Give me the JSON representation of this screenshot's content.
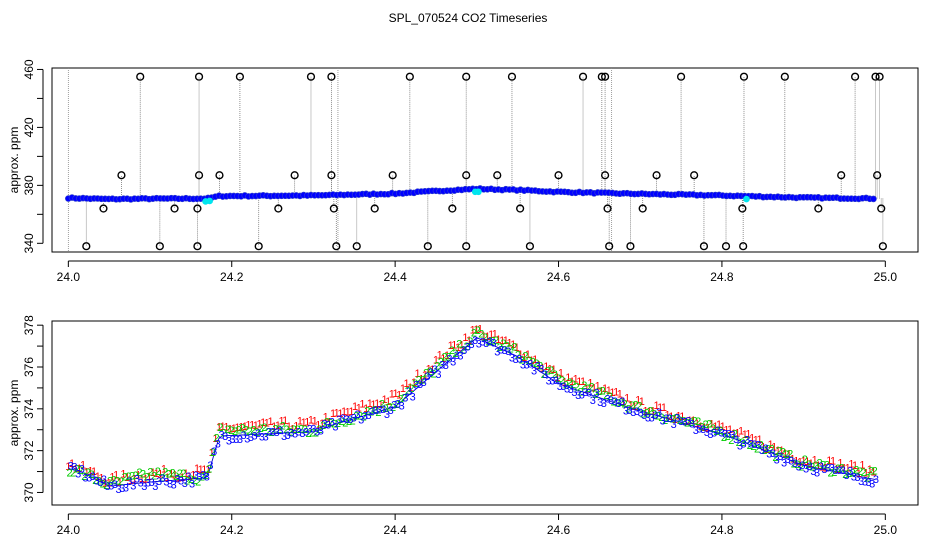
{
  "title": "SPL_070524  CO2 Timeseries",
  "colors": {
    "sample": "#0000ff",
    "ring": "#000000",
    "ref": "#00e5ee",
    "s1": "#ff0000",
    "s2": "#00cc00",
    "s3": "#0000ff"
  },
  "chart_data": [
    {
      "type": "scatter",
      "ylabel": "approx. ppm",
      "xlim": [
        23.98,
        25.04
      ],
      "ylim": [
        334,
        461
      ],
      "xticks": [
        "24.0",
        "24.2",
        "24.4",
        "24.6",
        "24.8",
        "25.0"
      ],
      "yticks": [
        "340",
        "380",
        "420",
        "460"
      ],
      "baseline": [
        [
          24.0,
          371.3
        ],
        [
          24.05,
          370.5
        ],
        [
          24.1,
          370.8
        ],
        [
          24.17,
          370.9
        ],
        [
          24.185,
          372.6
        ],
        [
          24.3,
          373.0
        ],
        [
          24.33,
          373.4
        ],
        [
          24.4,
          374.3
        ],
        [
          24.46,
          376.4
        ],
        [
          24.5,
          377.6
        ],
        [
          24.55,
          376.8
        ],
        [
          24.6,
          375.5
        ],
        [
          24.66,
          374.6
        ],
        [
          24.7,
          374.1
        ],
        [
          24.8,
          373.0
        ],
        [
          24.9,
          371.5
        ],
        [
          24.99,
          370.9
        ]
      ],
      "outliers_high": [
        24.088,
        24.16,
        24.21,
        24.297,
        24.322,
        24.418,
        24.487,
        24.543,
        24.63,
        24.653,
        24.657,
        24.75,
        24.827,
        24.877,
        24.963,
        24.988,
        24.993
      ],
      "outliers_mid": [
        24.065,
        24.16,
        24.185,
        24.277,
        24.322,
        24.397,
        24.487,
        24.525,
        24.6,
        24.657,
        24.72,
        24.766,
        24.946,
        24.99
      ],
      "outliers_low": [
        24.043,
        24.13,
        24.158,
        24.257,
        24.325,
        24.375,
        24.47,
        24.553,
        24.66,
        24.703,
        24.825,
        24.918,
        24.995
      ],
      "outliers_bottom": [
        24.022,
        24.112,
        24.158,
        24.233,
        24.328,
        24.353,
        24.44,
        24.487,
        24.565,
        24.662,
        24.688,
        24.778,
        24.826,
        24.805,
        24.997
      ],
      "ref_points": [
        24.168,
        24.173,
        24.498,
        24.502,
        24.83
      ]
    },
    {
      "type": "scatter",
      "ylabel": "approx. ppm",
      "xlim": [
        23.98,
        25.04
      ],
      "ylim": [
        369.4,
        378.2
      ],
      "xticks": [
        "24.0",
        "24.2",
        "24.4",
        "24.6",
        "24.8",
        "25.0"
      ],
      "yticks": [
        "370",
        "372",
        "374",
        "376",
        "378"
      ],
      "series": [
        {
          "name": "1",
          "values": [
            [
              24.0,
              371.4
            ],
            [
              24.05,
              370.6
            ],
            [
              24.1,
              370.9
            ],
            [
              24.17,
              371.0
            ],
            [
              24.185,
              373.1
            ],
            [
              24.3,
              373.3
            ],
            [
              24.33,
              373.7
            ],
            [
              24.4,
              374.6
            ],
            [
              24.46,
              376.6
            ],
            [
              24.5,
              377.8
            ],
            [
              24.55,
              376.9
            ],
            [
              24.6,
              375.6
            ],
            [
              24.66,
              374.8
            ],
            [
              24.7,
              374.2
            ],
            [
              24.8,
              373.1
            ],
            [
              24.9,
              371.6
            ],
            [
              24.99,
              371.0
            ]
          ]
        },
        {
          "name": "2",
          "values": [
            [
              24.0,
              371.2
            ],
            [
              24.05,
              370.4
            ],
            [
              24.1,
              370.9
            ],
            [
              24.17,
              370.7
            ],
            [
              24.185,
              373.0
            ],
            [
              24.3,
              373.0
            ],
            [
              24.33,
              373.4
            ],
            [
              24.4,
              374.3
            ],
            [
              24.46,
              376.3
            ],
            [
              24.5,
              377.6
            ],
            [
              24.55,
              376.7
            ],
            [
              24.6,
              375.4
            ],
            [
              24.66,
              374.6
            ],
            [
              24.7,
              374.0
            ],
            [
              24.8,
              372.9
            ],
            [
              24.9,
              371.4
            ],
            [
              24.99,
              370.8
            ]
          ]
        },
        {
          "name": "3",
          "values": [
            [
              24.0,
              371.3
            ],
            [
              24.05,
              370.3
            ],
            [
              24.1,
              370.5
            ],
            [
              24.17,
              370.7
            ],
            [
              24.185,
              372.7
            ],
            [
              24.3,
              372.9
            ],
            [
              24.33,
              373.3
            ],
            [
              24.4,
              374.1
            ],
            [
              24.46,
              376.1
            ],
            [
              24.5,
              377.4
            ],
            [
              24.55,
              376.5
            ],
            [
              24.6,
              375.2
            ],
            [
              24.66,
              374.4
            ],
            [
              24.7,
              373.9
            ],
            [
              24.8,
              372.8
            ],
            [
              24.9,
              371.3
            ],
            [
              24.99,
              370.6
            ]
          ]
        }
      ]
    }
  ]
}
